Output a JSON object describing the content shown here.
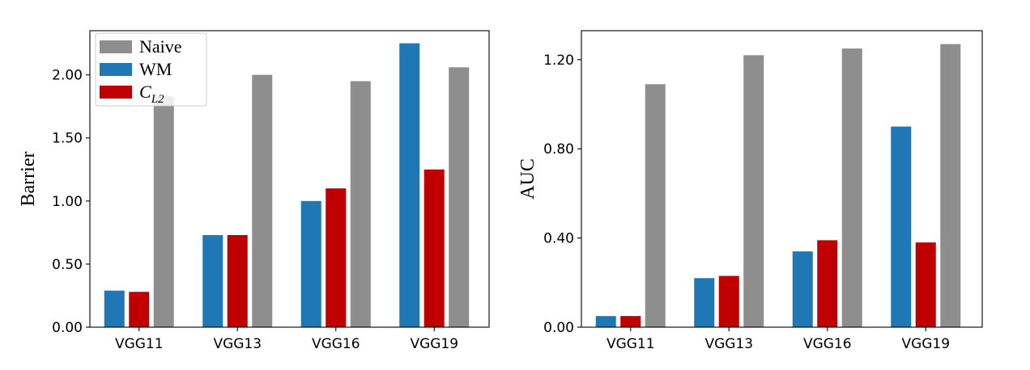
{
  "chart_data": [
    {
      "type": "bar",
      "title": "",
      "xlabel": "",
      "ylabel": "Barrier",
      "categories": [
        "VGG11",
        "VGG13",
        "VGG16",
        "VGG19"
      ],
      "ylim": [
        0,
        2.35
      ],
      "yticks": [
        0.0,
        0.5,
        1.0,
        1.5,
        2.0
      ],
      "ytick_labels": [
        "0.00",
        "0.50",
        "1.00",
        "1.50",
        "2.00"
      ],
      "grid": false,
      "legend": {
        "position": "top-left",
        "entries": [
          {
            "label": "Naive",
            "series": "Naive"
          },
          {
            "label": "WM",
            "series": "WM"
          },
          {
            "label": "C",
            "subscript": "L2",
            "series": "CL2"
          }
        ]
      },
      "series": [
        {
          "key": "WM",
          "values": [
            0.29,
            0.73,
            1.0,
            2.25
          ],
          "color": "#1f77b4"
        },
        {
          "key": "CL2",
          "values": [
            0.28,
            0.73,
            1.1,
            1.25
          ],
          "color": "#c00000"
        },
        {
          "key": "Naive",
          "values": [
            1.83,
            2.0,
            1.95,
            2.06
          ],
          "color": "#8e8e8e"
        }
      ]
    },
    {
      "type": "bar",
      "title": "",
      "xlabel": "",
      "ylabel": "AUC",
      "categories": [
        "VGG11",
        "VGG13",
        "VGG16",
        "VGG19"
      ],
      "ylim": [
        0,
        1.33
      ],
      "yticks": [
        0.0,
        0.4,
        0.8,
        1.2
      ],
      "ytick_labels": [
        "0.00",
        "0.40",
        "0.80",
        "1.20"
      ],
      "grid": false,
      "series": [
        {
          "key": "WM",
          "values": [
            0.05,
            0.22,
            0.34,
            0.9
          ],
          "color": "#1f77b4"
        },
        {
          "key": "CL2",
          "values": [
            0.05,
            0.23,
            0.39,
            0.38
          ],
          "color": "#c00000"
        },
        {
          "key": "Naive",
          "values": [
            1.09,
            1.22,
            1.25,
            1.27
          ],
          "color": "#8e8e8e"
        }
      ]
    }
  ]
}
